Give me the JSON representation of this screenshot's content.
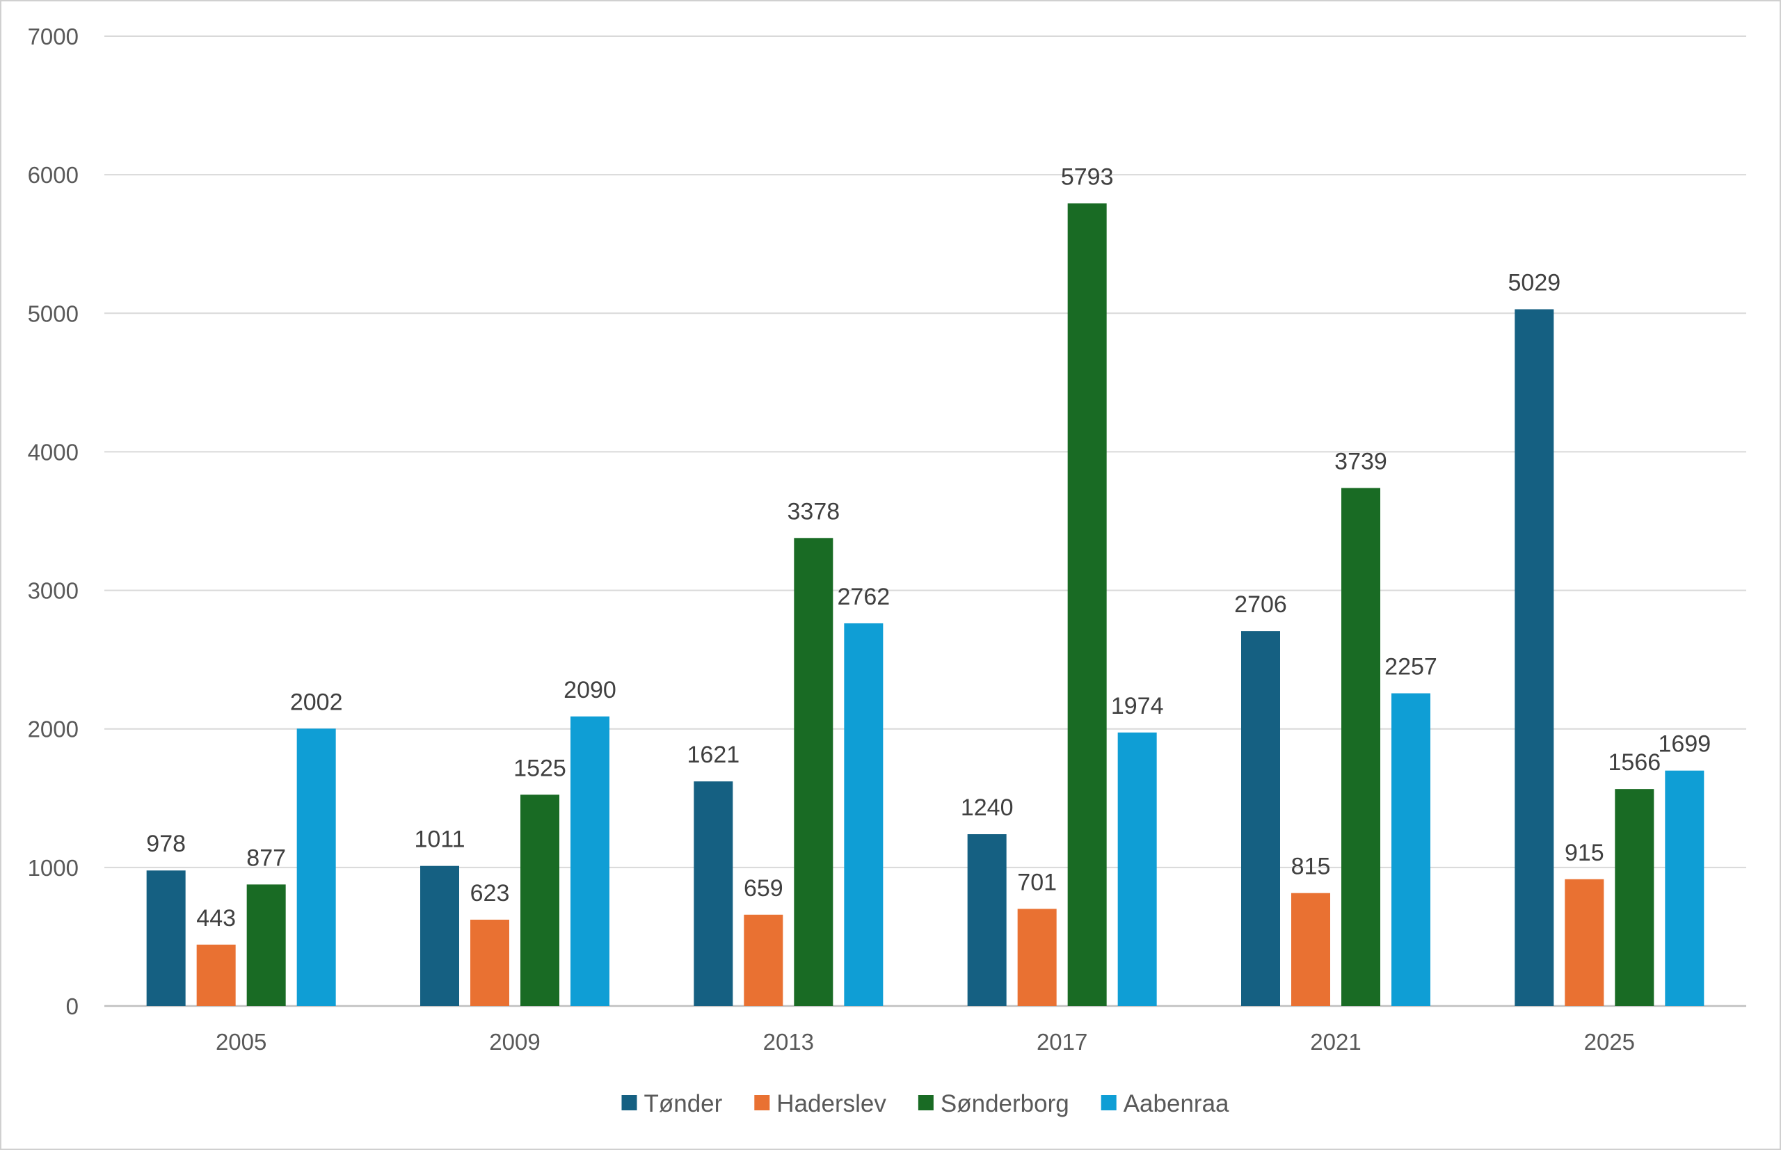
{
  "chart_data": {
    "type": "bar",
    "title": "",
    "xlabel": "",
    "ylabel": "",
    "categories": [
      "2005",
      "2009",
      "2013",
      "2017",
      "2021",
      "2025"
    ],
    "ylim": [
      0,
      7000
    ],
    "yticks": [
      0,
      1000,
      2000,
      3000,
      4000,
      5000,
      6000,
      7000
    ],
    "grid": true,
    "legend_position": "bottom",
    "data_labels": true,
    "series": [
      {
        "name": "Tønder",
        "color": "#156082",
        "values": [
          978,
          1011,
          1621,
          1240,
          2706,
          5029
        ]
      },
      {
        "name": "Haderslev",
        "color": "#E97132",
        "values": [
          443,
          623,
          659,
          701,
          815,
          915
        ]
      },
      {
        "name": "Sønderborg",
        "color": "#196B24",
        "values": [
          877,
          1525,
          3378,
          5793,
          3739,
          1566
        ]
      },
      {
        "name": "Aabenraa",
        "color": "#0F9ED5",
        "values": [
          2002,
          2090,
          2762,
          1974,
          2257,
          1699
        ]
      }
    ]
  }
}
